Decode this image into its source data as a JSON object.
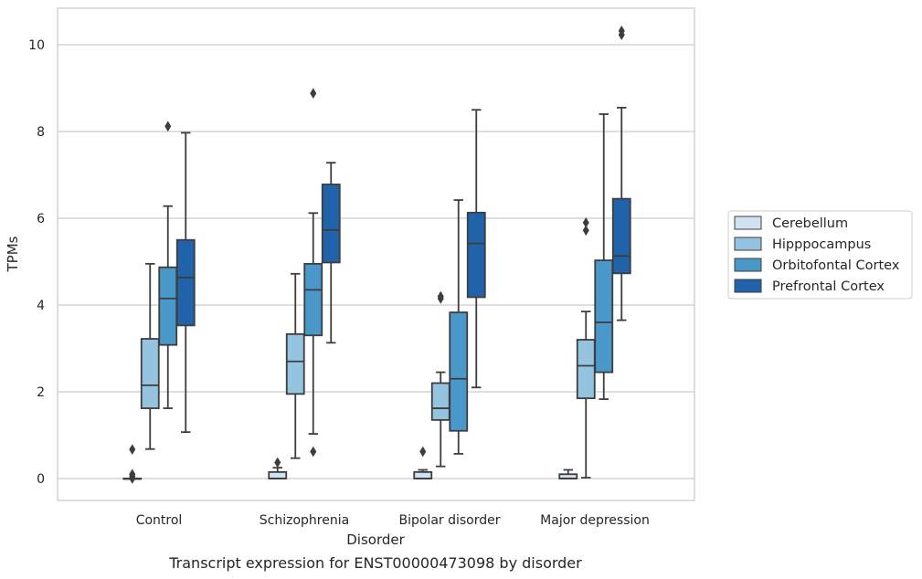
{
  "chart_data": {
    "type": "boxplot",
    "caption": "Transcript expression for ENST00000473098 by disorder",
    "xlabel": "Disorder",
    "ylabel": "TPMs",
    "ylim": [
      -0.5,
      10.8
    ],
    "yticks": [
      0,
      2,
      4,
      6,
      8,
      10
    ],
    "grid": true,
    "legend_position": "right",
    "categories": [
      "Control",
      "Schizophrenia",
      "Bipolar disorder",
      "Major depression"
    ],
    "series": [
      {
        "name": "Cerebellum",
        "color": "#d0e1f2",
        "boxes": [
          {
            "whislo": 0.0,
            "q1": 0.0,
            "med": 0.0,
            "q3": 0.0,
            "whishi": 0.0,
            "fliers": [
              0.0,
              0.05,
              0.1,
              0.67
            ]
          },
          {
            "whislo": 0.0,
            "q1": 0.0,
            "med": 0.0,
            "q3": 0.15,
            "whishi": 0.25,
            "fliers": [
              0.37
            ]
          },
          {
            "whislo": 0.0,
            "q1": 0.0,
            "med": 0.0,
            "q3": 0.15,
            "whishi": 0.2,
            "fliers": [
              0.62
            ]
          },
          {
            "whislo": 0.0,
            "q1": 0.0,
            "med": 0.0,
            "q3": 0.1,
            "whishi": 0.2,
            "fliers": []
          }
        ]
      },
      {
        "name": "Hipppocampus",
        "color": "#94c4df",
        "boxes": [
          {
            "whislo": 0.68,
            "q1": 1.62,
            "med": 2.15,
            "q3": 3.22,
            "whishi": 4.95,
            "fliers": []
          },
          {
            "whislo": 0.47,
            "q1": 1.95,
            "med": 2.7,
            "q3": 3.33,
            "whishi": 4.72,
            "fliers": []
          },
          {
            "whislo": 0.28,
            "q1": 1.35,
            "med": 1.62,
            "q3": 2.2,
            "whishi": 2.45,
            "fliers": [
              4.15,
              4.2
            ]
          },
          {
            "whislo": 0.02,
            "q1": 1.85,
            "med": 2.6,
            "q3": 3.2,
            "whishi": 3.85,
            "fliers": [
              5.72,
              5.9
            ]
          }
        ]
      },
      {
        "name": "Orbitofontal Cortex",
        "color": "#4a98c9",
        "boxes": [
          {
            "whislo": 1.62,
            "q1": 3.08,
            "med": 4.15,
            "q3": 4.87,
            "whishi": 6.28,
            "fliers": [
              8.12
            ]
          },
          {
            "whislo": 1.03,
            "q1": 3.3,
            "med": 4.35,
            "q3": 4.95,
            "whishi": 6.12,
            "fliers": [
              0.62,
              8.88
            ]
          },
          {
            "whislo": 0.57,
            "q1": 1.1,
            "med": 2.3,
            "q3": 3.83,
            "whishi": 6.42,
            "fliers": []
          },
          {
            "whislo": 1.83,
            "q1": 2.45,
            "med": 3.6,
            "q3": 5.03,
            "whishi": 8.4,
            "fliers": []
          }
        ]
      },
      {
        "name": "Prefrontal Cortex",
        "color": "#2163aa",
        "boxes": [
          {
            "whislo": 1.07,
            "q1": 3.53,
            "med": 4.63,
            "q3": 5.5,
            "whishi": 7.97,
            "fliers": []
          },
          {
            "whislo": 3.13,
            "q1": 4.98,
            "med": 5.73,
            "q3": 6.78,
            "whishi": 7.28,
            "fliers": []
          },
          {
            "whislo": 2.1,
            "q1": 4.18,
            "med": 5.42,
            "q3": 6.13,
            "whishi": 8.5,
            "fliers": []
          },
          {
            "whislo": 3.65,
            "q1": 4.73,
            "med": 5.13,
            "q3": 6.45,
            "whishi": 8.55,
            "fliers": [
              10.23,
              10.32
            ]
          }
        ]
      }
    ]
  }
}
